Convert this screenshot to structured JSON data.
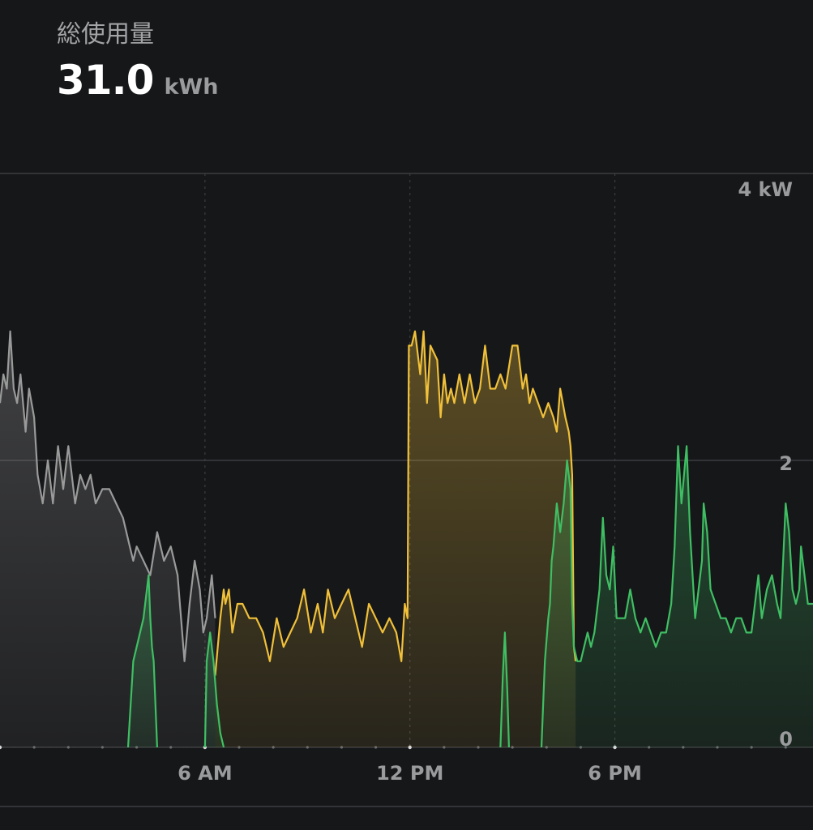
{
  "summary": {
    "label": "総使用量",
    "value": "31.0",
    "unit": "kWh"
  },
  "colors": {
    "background": "#161719",
    "grid": "#3c3d40",
    "label": "#9a9b9d",
    "series_gray": "#9a9a9a",
    "series_yellow": "#f0c03a",
    "series_green": "#3fbf63"
  },
  "chart_data": {
    "type": "area",
    "x_unit": "hours since midnight",
    "y_unit": "kW",
    "xlim": [
      0,
      23.8
    ],
    "ylim": [
      0,
      4
    ],
    "x_ticks": [
      {
        "x": 6,
        "label": "6 AM"
      },
      {
        "x": 12,
        "label": "12 PM"
      },
      {
        "x": 18,
        "label": "6 PM"
      }
    ],
    "y_ticks": [
      {
        "y": 4,
        "label": "4 kW"
      },
      {
        "y": 2,
        "label": "2"
      },
      {
        "y": 0,
        "label": "0"
      }
    ],
    "grid": true,
    "series": [
      {
        "color": "#9a9a9a",
        "points": [
          [
            0,
            2.4
          ],
          [
            0.1,
            2.6
          ],
          [
            0.2,
            2.5
          ],
          [
            0.3,
            2.9
          ],
          [
            0.4,
            2.5
          ],
          [
            0.5,
            2.4
          ],
          [
            0.6,
            2.6
          ],
          [
            0.75,
            2.2
          ],
          [
            0.85,
            2.5
          ],
          [
            1.0,
            2.3
          ],
          [
            1.1,
            1.9
          ],
          [
            1.25,
            1.7
          ],
          [
            1.4,
            2.0
          ],
          [
            1.55,
            1.7
          ],
          [
            1.7,
            2.1
          ],
          [
            1.85,
            1.8
          ],
          [
            2.0,
            2.1
          ],
          [
            2.2,
            1.7
          ],
          [
            2.35,
            1.9
          ],
          [
            2.5,
            1.8
          ],
          [
            2.65,
            1.9
          ],
          [
            2.8,
            1.7
          ],
          [
            3.0,
            1.8
          ],
          [
            3.2,
            1.8
          ],
          [
            3.4,
            1.7
          ],
          [
            3.6,
            1.6
          ],
          [
            3.8,
            1.4
          ],
          [
            3.9,
            1.3
          ],
          [
            4.0,
            1.4
          ],
          [
            4.2,
            1.3
          ],
          [
            4.4,
            1.2
          ],
          [
            4.6,
            1.5
          ],
          [
            4.8,
            1.3
          ],
          [
            5.0,
            1.4
          ],
          [
            5.2,
            1.2
          ],
          [
            5.4,
            0.6
          ],
          [
            5.55,
            1.0
          ],
          [
            5.7,
            1.3
          ],
          [
            5.85,
            1.1
          ],
          [
            5.95,
            0.8
          ],
          [
            6.05,
            0.9
          ],
          [
            6.2,
            1.2
          ],
          [
            6.3,
            0.9
          ]
        ]
      },
      {
        "color": "#f0c03a",
        "points": [
          [
            6.3,
            0.5
          ],
          [
            6.45,
            0.9
          ],
          [
            6.55,
            1.1
          ],
          [
            6.6,
            1.0
          ],
          [
            6.7,
            1.1
          ],
          [
            6.8,
            0.8
          ],
          [
            6.95,
            1.0
          ],
          [
            7.1,
            1.0
          ],
          [
            7.3,
            0.9
          ],
          [
            7.5,
            0.9
          ],
          [
            7.7,
            0.8
          ],
          [
            7.9,
            0.6
          ],
          [
            8.1,
            0.9
          ],
          [
            8.3,
            0.7
          ],
          [
            8.5,
            0.8
          ],
          [
            8.7,
            0.9
          ],
          [
            8.9,
            1.1
          ],
          [
            9.1,
            0.8
          ],
          [
            9.3,
            1.0
          ],
          [
            9.45,
            0.8
          ],
          [
            9.6,
            1.1
          ],
          [
            9.8,
            0.9
          ],
          [
            10.0,
            1.0
          ],
          [
            10.2,
            1.1
          ],
          [
            10.4,
            0.9
          ],
          [
            10.6,
            0.7
          ],
          [
            10.8,
            1.0
          ],
          [
            11.0,
            0.9
          ],
          [
            11.2,
            0.8
          ],
          [
            11.4,
            0.9
          ],
          [
            11.6,
            0.8
          ],
          [
            11.75,
            0.6
          ],
          [
            11.85,
            1.0
          ],
          [
            11.93,
            0.9
          ],
          [
            11.97,
            2.8
          ],
          [
            12.05,
            2.8
          ],
          [
            12.15,
            2.9
          ],
          [
            12.3,
            2.6
          ],
          [
            12.4,
            2.9
          ],
          [
            12.5,
            2.4
          ],
          [
            12.6,
            2.8
          ],
          [
            12.8,
            2.7
          ],
          [
            12.9,
            2.3
          ],
          [
            13.0,
            2.6
          ],
          [
            13.1,
            2.4
          ],
          [
            13.2,
            2.5
          ],
          [
            13.3,
            2.4
          ],
          [
            13.45,
            2.6
          ],
          [
            13.6,
            2.4
          ],
          [
            13.75,
            2.6
          ],
          [
            13.9,
            2.4
          ],
          [
            14.05,
            2.5
          ],
          [
            14.2,
            2.8
          ],
          [
            14.35,
            2.5
          ],
          [
            14.5,
            2.5
          ],
          [
            14.65,
            2.6
          ],
          [
            14.8,
            2.5
          ],
          [
            15.0,
            2.8
          ],
          [
            15.15,
            2.8
          ],
          [
            15.3,
            2.5
          ],
          [
            15.4,
            2.6
          ],
          [
            15.5,
            2.4
          ],
          [
            15.6,
            2.5
          ],
          [
            15.75,
            2.4
          ],
          [
            15.9,
            2.3
          ],
          [
            16.05,
            2.4
          ],
          [
            16.2,
            2.3
          ],
          [
            16.3,
            2.2
          ],
          [
            16.4,
            2.5
          ],
          [
            16.55,
            2.3
          ],
          [
            16.65,
            2.2
          ],
          [
            16.7,
            2.1
          ],
          [
            16.75,
            1.9
          ],
          [
            16.8,
            0.7
          ],
          [
            16.85,
            0.6
          ]
        ]
      },
      {
        "color": "#3fbf63",
        "segments": [
          [
            [
              3.75,
              0
            ],
            [
              3.9,
              0.6
            ],
            [
              4.0,
              0.7
            ],
            [
              4.1,
              0.8
            ],
            [
              4.2,
              0.9
            ],
            [
              4.25,
              1.0
            ],
            [
              4.35,
              1.2
            ],
            [
              4.4,
              0.9
            ],
            [
              4.45,
              0.7
            ],
            [
              4.5,
              0.6
            ],
            [
              4.6,
              0
            ]
          ],
          [
            [
              6.0,
              0
            ],
            [
              6.05,
              0.6
            ],
            [
              6.15,
              0.8
            ],
            [
              6.25,
              0.6
            ],
            [
              6.35,
              0.3
            ],
            [
              6.45,
              0.1
            ],
            [
              6.55,
              0
            ]
          ],
          [
            [
              14.65,
              0
            ],
            [
              14.72,
              0.5
            ],
            [
              14.78,
              0.8
            ],
            [
              14.85,
              0.4
            ],
            [
              14.9,
              0
            ]
          ],
          [
            [
              15.85,
              0
            ],
            [
              15.95,
              0.6
            ],
            [
              16.05,
              0.9
            ],
            [
              16.1,
              1.0
            ],
            [
              16.15,
              1.3
            ],
            [
              16.2,
              1.4
            ],
            [
              16.3,
              1.7
            ],
            [
              16.4,
              1.5
            ],
            [
              16.5,
              1.7
            ],
            [
              16.6,
              2.0
            ],
            [
              16.7,
              1.8
            ],
            [
              16.75,
              1.0
            ],
            [
              16.8,
              0.7
            ],
            [
              16.9,
              0.6
            ],
            [
              17.0,
              0.6
            ],
            [
              17.1,
              0.7
            ],
            [
              17.2,
              0.8
            ],
            [
              17.3,
              0.7
            ],
            [
              17.4,
              0.8
            ],
            [
              17.55,
              1.1
            ],
            [
              17.65,
              1.6
            ],
            [
              17.75,
              1.2
            ],
            [
              17.85,
              1.1
            ],
            [
              17.95,
              1.4
            ],
            [
              18.05,
              0.9
            ],
            [
              18.15,
              0.9
            ],
            [
              18.3,
              0.9
            ],
            [
              18.45,
              1.1
            ],
            [
              18.6,
              0.9
            ],
            [
              18.75,
              0.8
            ],
            [
              18.9,
              0.9
            ],
            [
              19.05,
              0.8
            ],
            [
              19.2,
              0.7
            ],
            [
              19.35,
              0.8
            ],
            [
              19.5,
              0.8
            ],
            [
              19.65,
              1.0
            ],
            [
              19.75,
              1.4
            ],
            [
              19.85,
              2.1
            ],
            [
              19.95,
              1.7
            ],
            [
              20.1,
              2.1
            ],
            [
              20.2,
              1.5
            ],
            [
              20.35,
              0.9
            ],
            [
              20.45,
              1.1
            ],
            [
              20.55,
              1.3
            ],
            [
              20.6,
              1.7
            ],
            [
              20.7,
              1.5
            ],
            [
              20.8,
              1.1
            ],
            [
              20.95,
              1.0
            ],
            [
              21.1,
              0.9
            ],
            [
              21.25,
              0.9
            ],
            [
              21.4,
              0.8
            ],
            [
              21.55,
              0.9
            ],
            [
              21.7,
              0.9
            ],
            [
              21.85,
              0.8
            ],
            [
              22.0,
              0.8
            ],
            [
              22.1,
              1.0
            ],
            [
              22.2,
              1.2
            ],
            [
              22.3,
              0.9
            ],
            [
              22.45,
              1.1
            ],
            [
              22.6,
              1.2
            ],
            [
              22.75,
              1.0
            ],
            [
              22.85,
              0.9
            ],
            [
              23.0,
              1.7
            ],
            [
              23.1,
              1.5
            ],
            [
              23.2,
              1.1
            ],
            [
              23.3,
              1.0
            ],
            [
              23.4,
              1.1
            ],
            [
              23.45,
              1.4
            ],
            [
              23.55,
              1.2
            ],
            [
              23.65,
              1.0
            ],
            [
              23.8,
              1.0
            ]
          ]
        ]
      }
    ]
  }
}
